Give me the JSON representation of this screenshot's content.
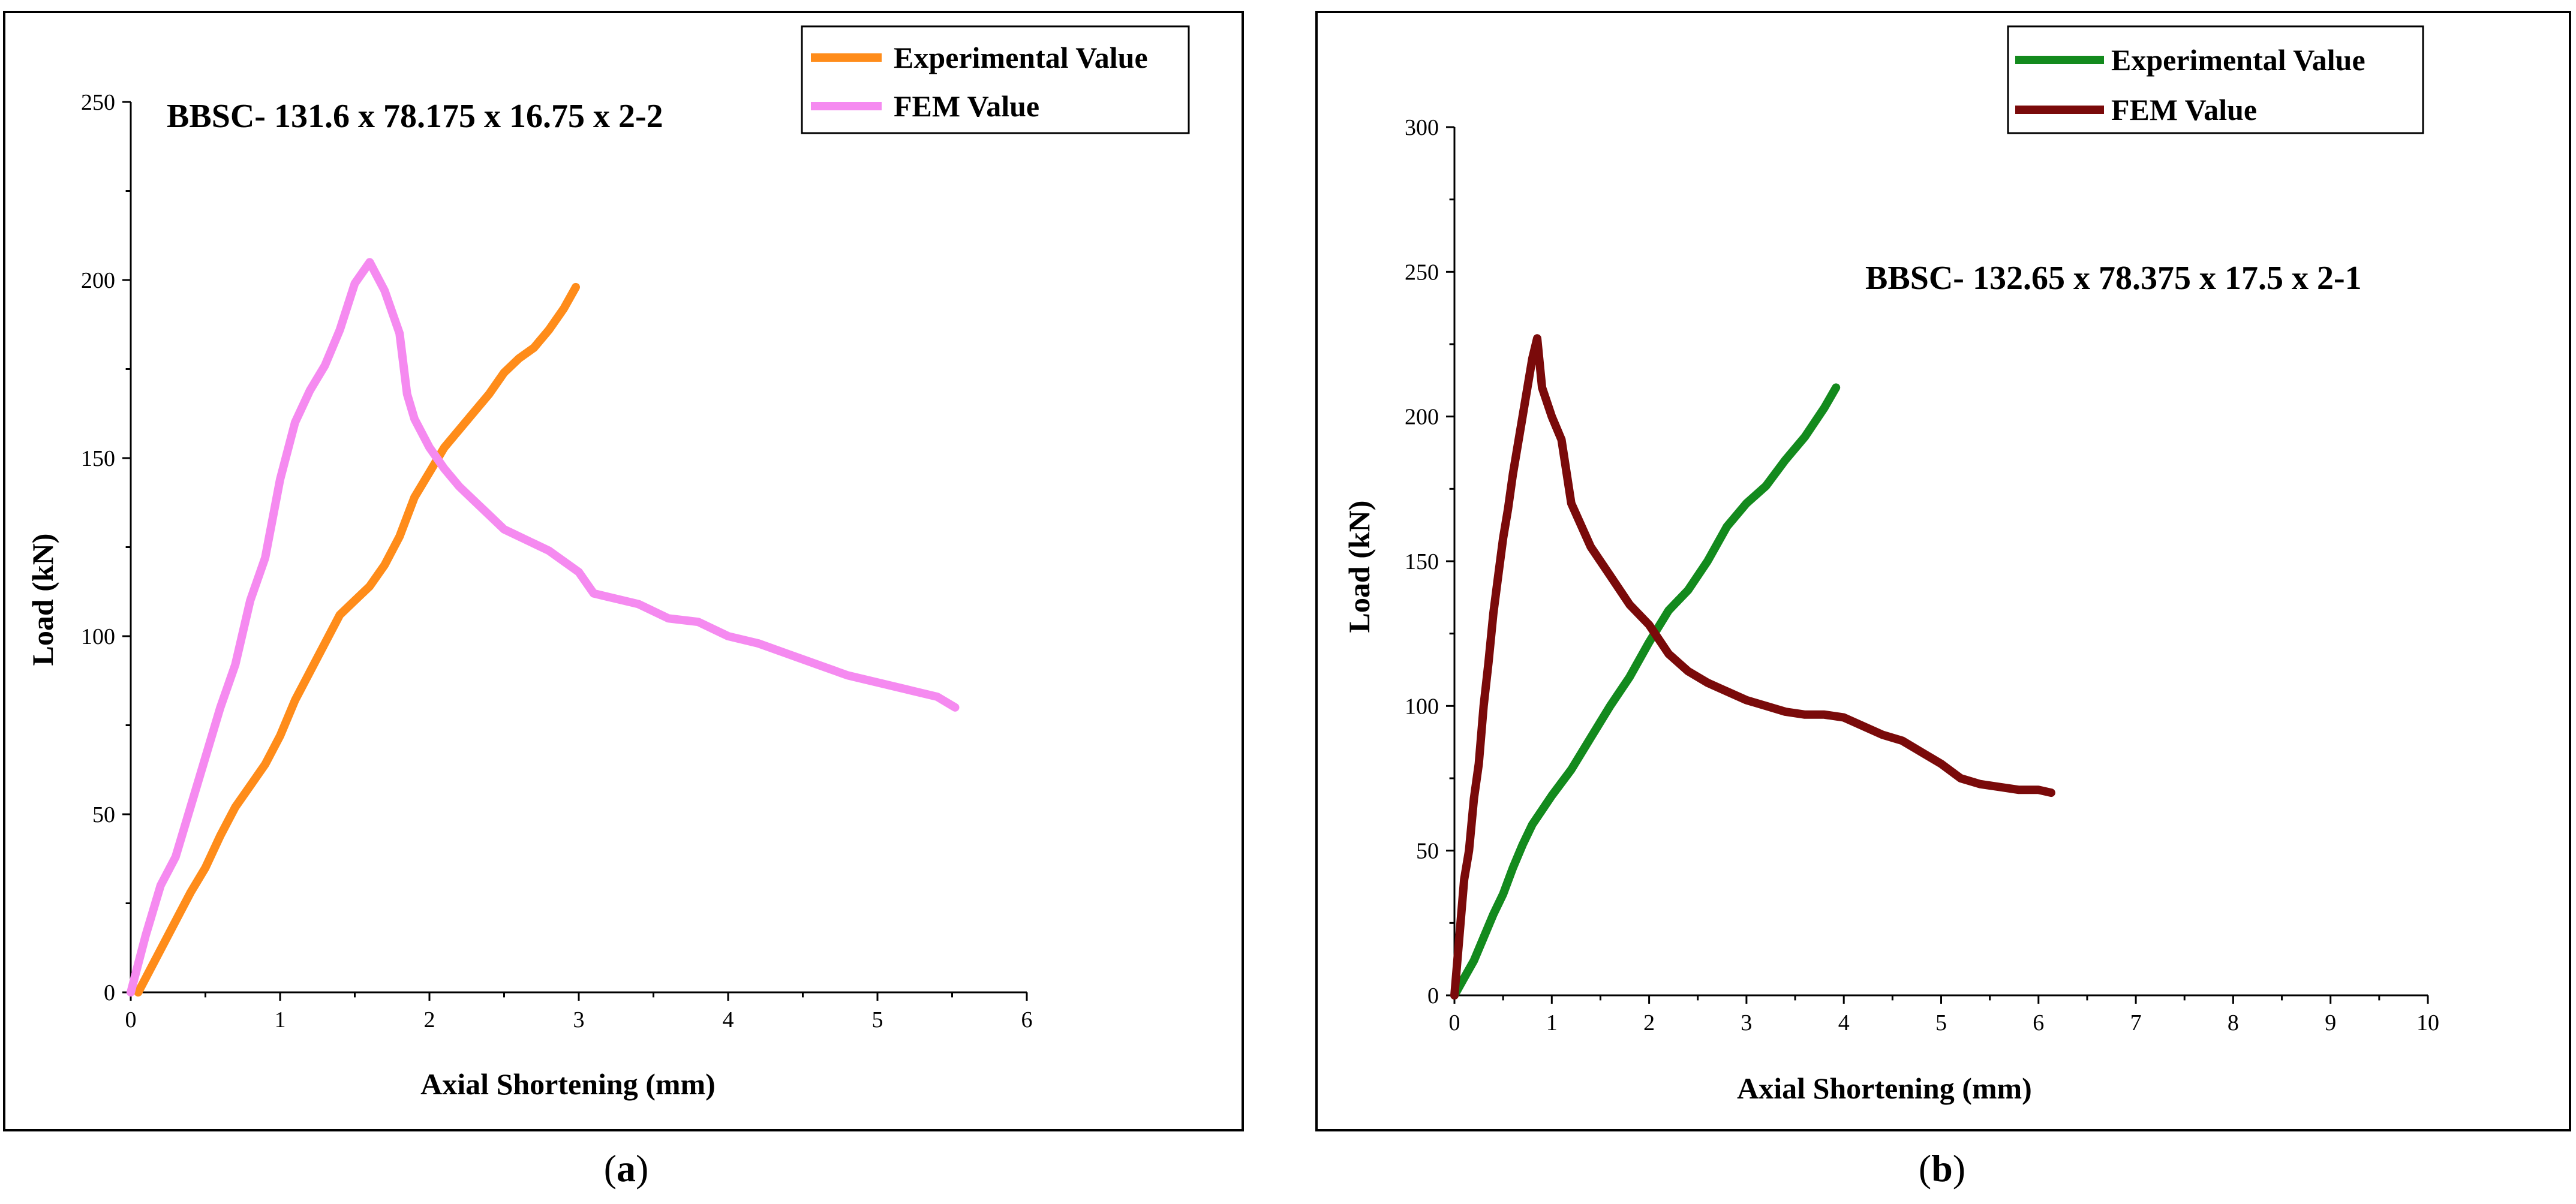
{
  "chart_data": [
    {
      "type": "line",
      "panel_label": "a",
      "title": "BBSC- 131.6 x 78.175 x 16.75 x 2-2",
      "xlabel": "Axial Shortening (mm)",
      "ylabel": "Load (kN)",
      "xlim": [
        0,
        6
      ],
      "ylim": [
        0,
        250
      ],
      "xticks": [
        0,
        1,
        2,
        3,
        4,
        5,
        6
      ],
      "yticks": [
        0,
        50,
        100,
        150,
        200,
        250
      ],
      "legend_position": "top-right",
      "series": [
        {
          "name": "Experimental Value",
          "color": "#FF8C1A",
          "x": [
            0.05,
            0.1,
            0.2,
            0.3,
            0.4,
            0.5,
            0.6,
            0.7,
            0.8,
            0.9,
            1.0,
            1.1,
            1.2,
            1.3,
            1.4,
            1.5,
            1.6,
            1.7,
            1.8,
            1.9,
            2.0,
            2.1,
            2.2,
            2.3,
            2.4,
            2.5,
            2.6,
            2.7,
            2.8,
            2.9,
            2.98
          ],
          "y": [
            0,
            4,
            12,
            20,
            28,
            35,
            44,
            52,
            58,
            64,
            72,
            82,
            90,
            98,
            106,
            110,
            114,
            120,
            128,
            139,
            146,
            153,
            158,
            163,
            168,
            174,
            178,
            181,
            186,
            192,
            198
          ]
        },
        {
          "name": "FEM Value",
          "color": "#F58AF0",
          "x": [
            0,
            0.05,
            0.1,
            0.2,
            0.3,
            0.4,
            0.5,
            0.6,
            0.7,
            0.8,
            0.9,
            1.0,
            1.1,
            1.2,
            1.3,
            1.4,
            1.5,
            1.6,
            1.7,
            1.8,
            1.85,
            1.9,
            2.0,
            2.1,
            2.2,
            2.3,
            2.4,
            2.5,
            2.6,
            2.7,
            2.8,
            2.9,
            3.0,
            3.1,
            3.2,
            3.4,
            3.6,
            3.8,
            4.0,
            4.2,
            4.4,
            4.6,
            4.8,
            5.0,
            5.2,
            5.4,
            5.52
          ],
          "y": [
            0,
            8,
            16,
            30,
            38,
            52,
            66,
            80,
            92,
            110,
            122,
            144,
            160,
            169,
            176,
            186,
            199,
            205,
            197,
            185,
            168,
            161,
            153,
            147,
            142,
            138,
            134,
            130,
            128,
            126,
            124,
            121,
            118,
            112,
            111,
            109,
            105,
            104,
            100,
            98,
            95,
            92,
            89,
            87,
            85,
            83,
            80
          ]
        }
      ]
    },
    {
      "type": "line",
      "panel_label": "b",
      "title": "BBSC- 132.65 x 78.375 x 17.5 x 2-1",
      "xlabel": "Axial Shortening (mm)",
      "ylabel": "Load (kN)",
      "xlim": [
        0,
        10
      ],
      "ylim": [
        0,
        300
      ],
      "xticks": [
        0,
        1,
        2,
        3,
        4,
        5,
        6,
        7,
        8,
        9,
        10
      ],
      "yticks": [
        0,
        50,
        100,
        150,
        200,
        250,
        300
      ],
      "legend_position": "top-right",
      "series": [
        {
          "name": "Experimental Value",
          "color": "#138A1D",
          "x": [
            0,
            0.1,
            0.2,
            0.3,
            0.4,
            0.5,
            0.6,
            0.7,
            0.8,
            0.9,
            1.0,
            1.2,
            1.4,
            1.6,
            1.8,
            2.0,
            2.2,
            2.4,
            2.6,
            2.8,
            3.0,
            3.2,
            3.4,
            3.6,
            3.8,
            3.92
          ],
          "y": [
            0,
            6,
            12,
            20,
            28,
            35,
            44,
            52,
            59,
            64,
            69,
            78,
            89,
            100,
            110,
            122,
            133,
            140,
            150,
            162,
            170,
            176,
            185,
            193,
            203,
            210
          ]
        },
        {
          "name": "FEM Value",
          "color": "#7A0A0A",
          "x": [
            0,
            0.05,
            0.1,
            0.15,
            0.2,
            0.25,
            0.3,
            0.35,
            0.4,
            0.45,
            0.5,
            0.55,
            0.6,
            0.65,
            0.7,
            0.75,
            0.8,
            0.85,
            0.9,
            0.95,
            1.0,
            1.05,
            1.1,
            1.2,
            1.4,
            1.6,
            1.8,
            2.0,
            2.2,
            2.4,
            2.6,
            2.8,
            3.0,
            3.2,
            3.4,
            3.6,
            3.8,
            4.0,
            4.2,
            4.4,
            4.6,
            4.8,
            5.0,
            5.2,
            5.4,
            5.6,
            5.8,
            6.0,
            6.13
          ],
          "y": [
            0,
            20,
            40,
            50,
            68,
            80,
            100,
            115,
            132,
            145,
            158,
            168,
            180,
            190,
            200,
            210,
            220,
            227,
            210,
            205,
            200,
            196,
            192,
            170,
            155,
            145,
            135,
            128,
            118,
            112,
            108,
            105,
            102,
            100,
            98,
            97,
            97,
            96,
            93,
            90,
            88,
            84,
            80,
            75,
            73,
            72,
            71,
            71,
            70
          ]
        }
      ]
    }
  ],
  "captions": [
    {
      "open": "(",
      "label": "a",
      "close": ")"
    },
    {
      "open": "(",
      "label": "b",
      "close": ")"
    }
  ]
}
